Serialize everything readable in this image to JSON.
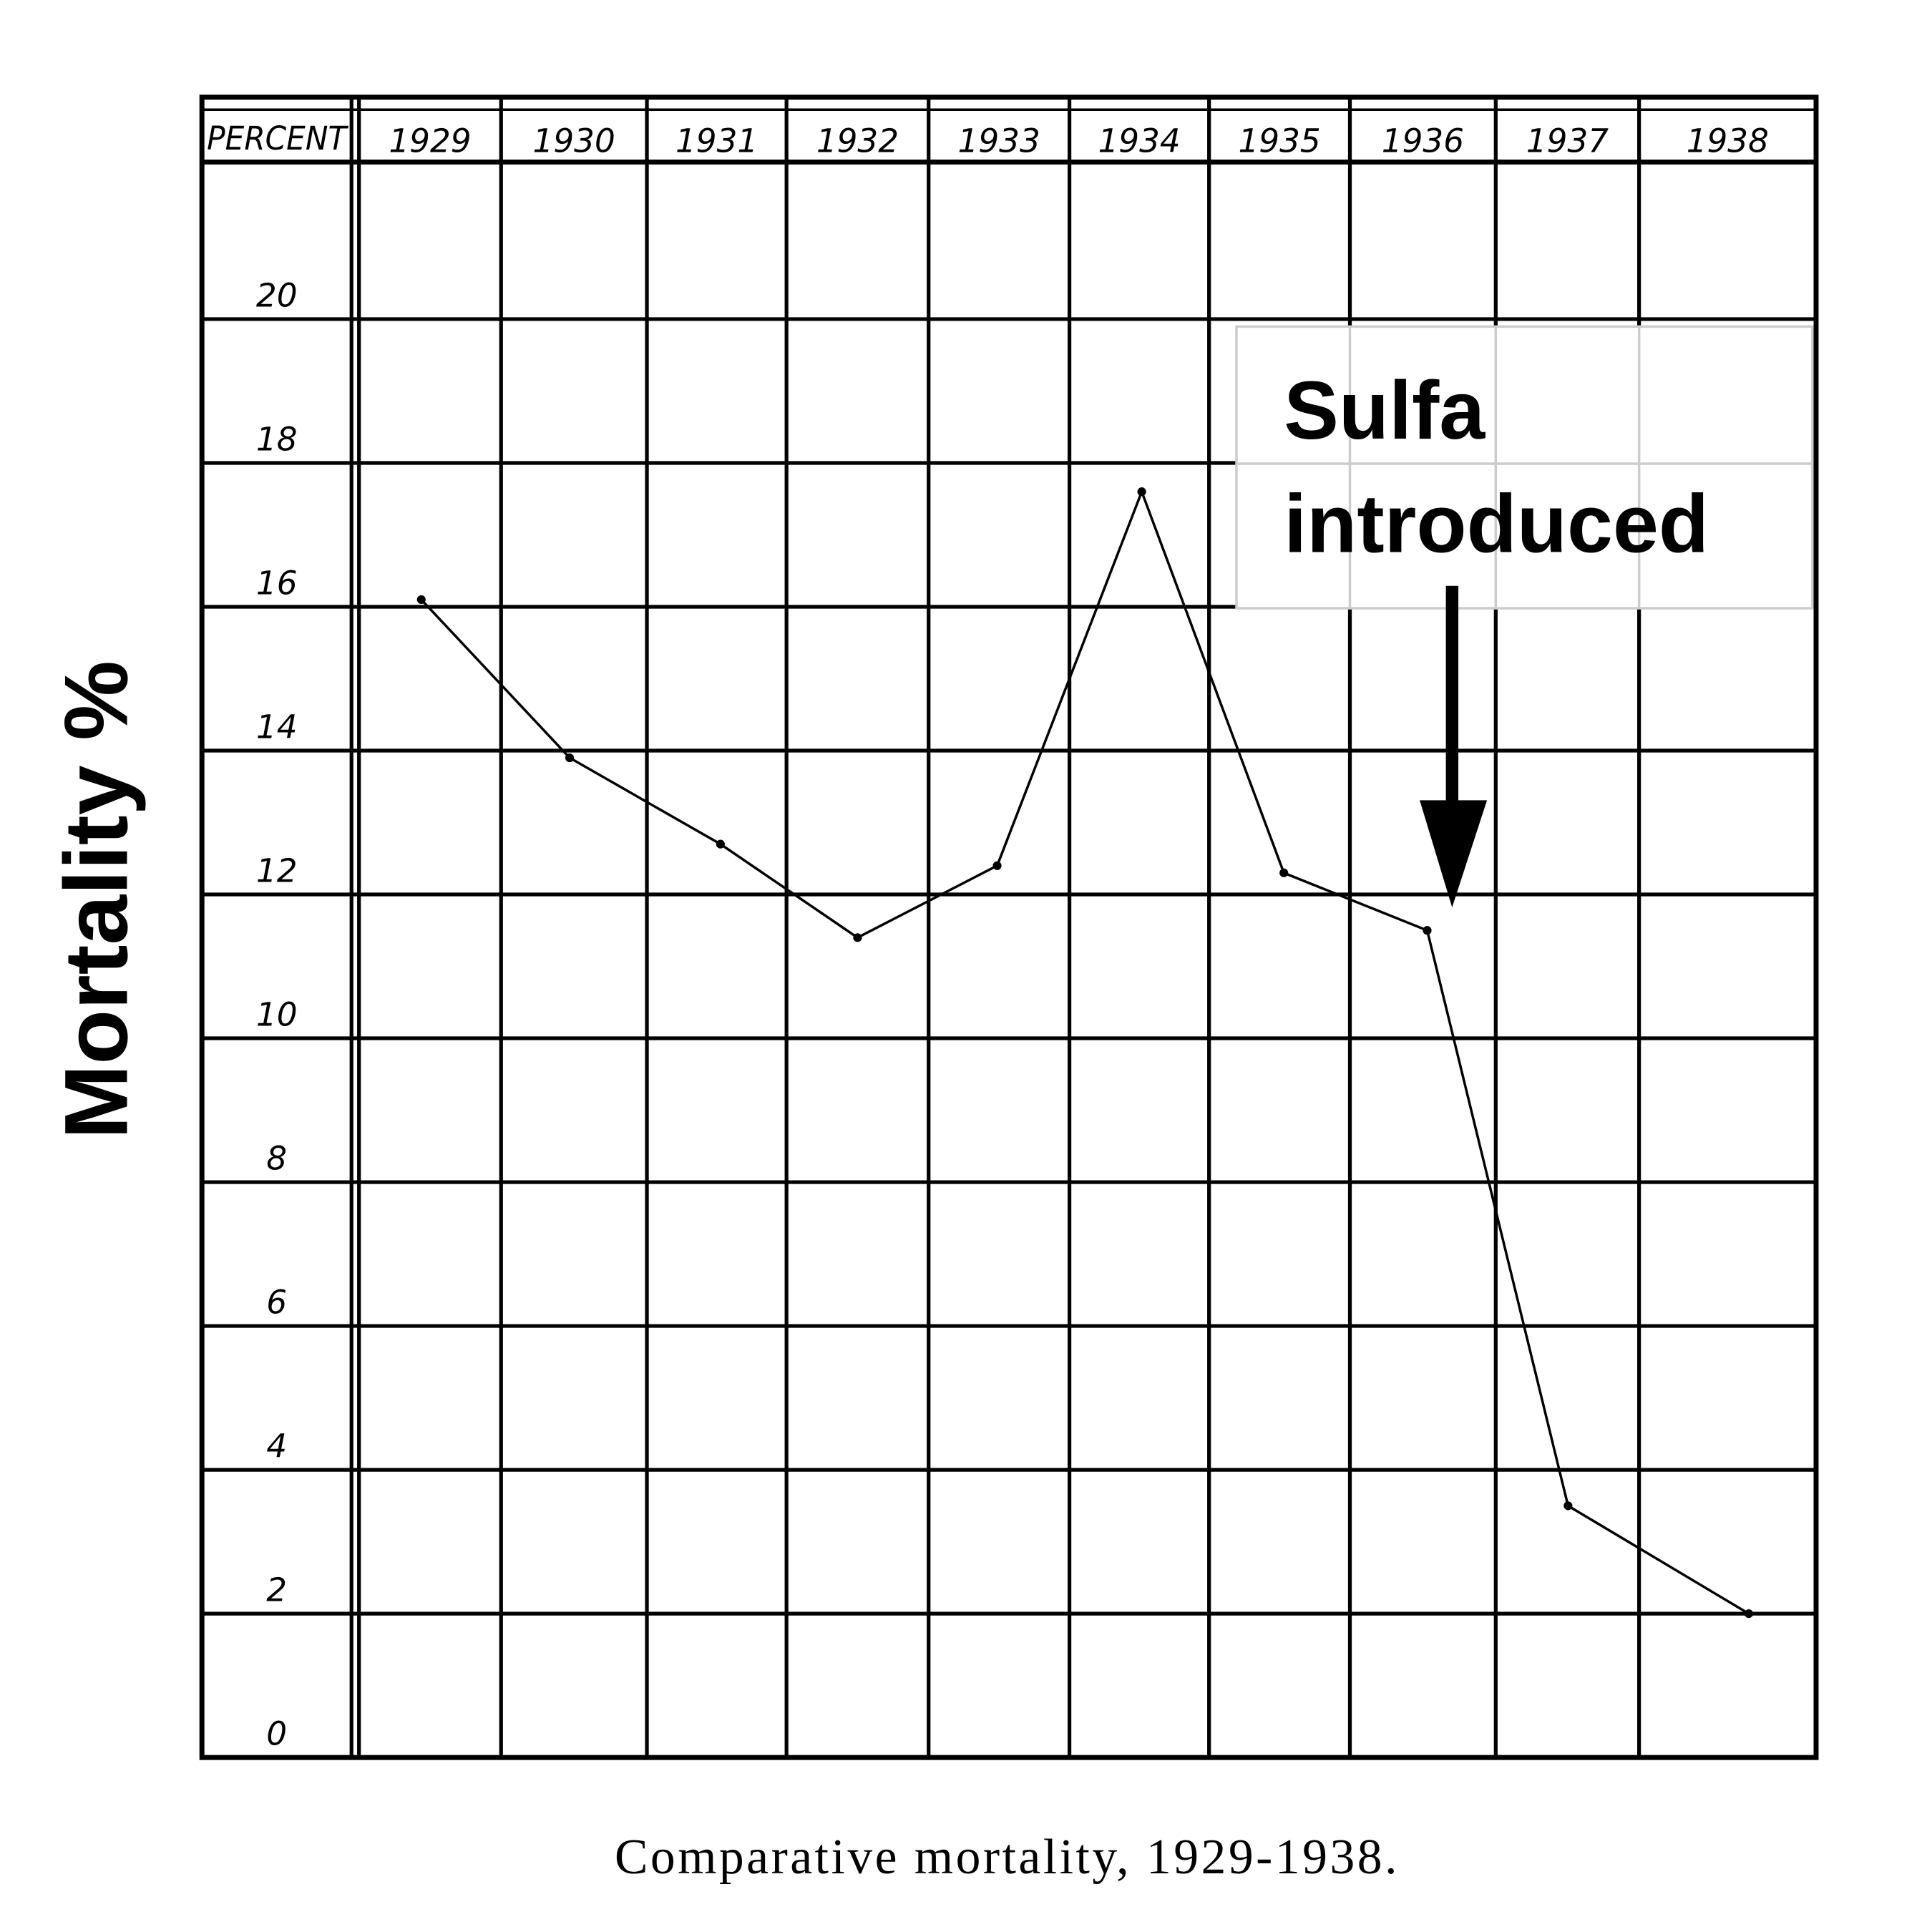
{
  "chart_data": {
    "type": "line",
    "title": "",
    "caption": "Comparative mortality, 1929-1938.",
    "xlabel": "",
    "ylabel": "Mortality %",
    "corner_label": "PERCENT",
    "categories": [
      "1929",
      "1930",
      "1931",
      "1932",
      "1933",
      "1934",
      "1935",
      "1936",
      "1937",
      "1938"
    ],
    "series": [
      {
        "name": "Mortality",
        "values": [
          16.1,
          13.9,
          12.7,
          11.4,
          12.4,
          17.6,
          12.3,
          11.5,
          3.5,
          2.0
        ]
      }
    ],
    "y_ticks": [
      "20",
      "18",
      "16",
      "14",
      "12",
      "10",
      "8",
      "6",
      "4",
      "2",
      "0"
    ],
    "ylim": [
      0,
      20
    ],
    "grid": true,
    "annotation": {
      "line1": "Sulfa",
      "line2": "introduced",
      "points_to": "1936"
    }
  }
}
